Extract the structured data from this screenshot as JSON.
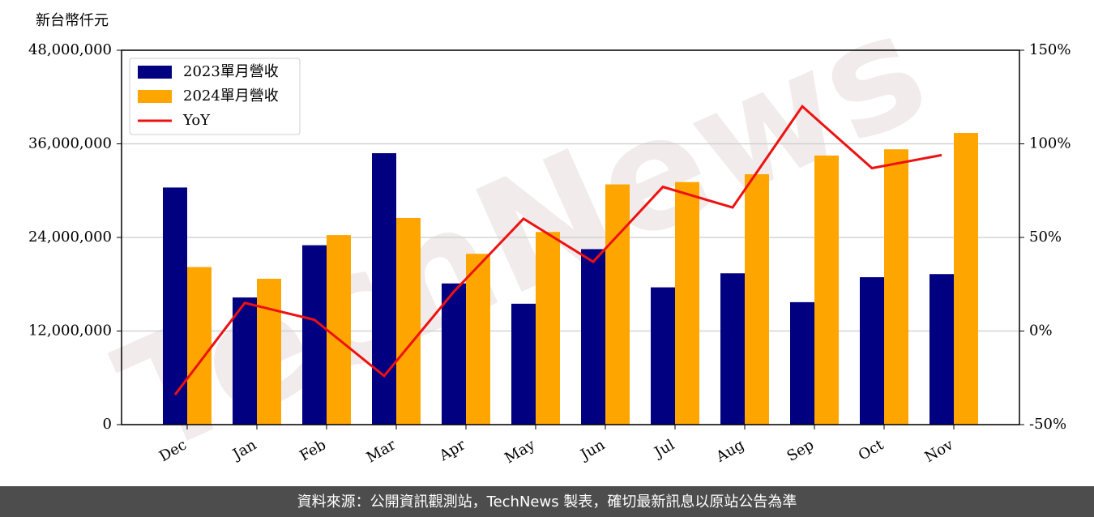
{
  "chart_data": {
    "type": "bar_line",
    "y_axis_label": "新台幣仟元",
    "categories": [
      "Dec",
      "Jan",
      "Feb",
      "Mar",
      "Apr",
      "May",
      "Jun",
      "Jul",
      "Aug",
      "Sep",
      "Oct",
      "Nov"
    ],
    "series": [
      {
        "name": "2023單月營收",
        "color": "#000080",
        "type": "bar",
        "values": [
          30400000,
          16300000,
          23000000,
          34800000,
          18100000,
          15500000,
          22500000,
          17600000,
          19400000,
          15700000,
          18900000,
          19300000
        ]
      },
      {
        "name": "2024單月營收",
        "color": "#ffa500",
        "type": "bar",
        "values": [
          20200000,
          18700000,
          24300000,
          26500000,
          21900000,
          24700000,
          30800000,
          31100000,
          32100000,
          34500000,
          35300000,
          37400000
        ]
      },
      {
        "name": "YoY",
        "color": "#ee1111",
        "type": "line",
        "axis": "y2",
        "values": [
          -34,
          15,
          6,
          -24,
          21,
          60,
          37,
          77,
          66,
          120,
          87,
          94
        ]
      }
    ],
    "ylim": [
      0,
      48000000
    ],
    "yticks": [
      0,
      {
        "value": 12000000,
        "label": "12,000,000"
      },
      {
        "value": 24000000,
        "label": "24,000,000"
      },
      {
        "value": 36000000,
        "label": "36,000,000"
      },
      {
        "value": 48000000,
        "label": "48,000,000"
      }
    ],
    "y2lim": [
      -50,
      150
    ],
    "y2ticks": [
      {
        "value": -50,
        "label": "-50%"
      },
      {
        "value": 0,
        "label": "0%"
      },
      {
        "value": 50,
        "label": "50%"
      },
      {
        "value": 100,
        "label": "100%"
      },
      {
        "value": 150,
        "label": "150%"
      }
    ],
    "grid": true,
    "legend": "upper left",
    "watermark": "TechNews",
    "footer": "資料來源：公開資訊觀測站，TechNews 製表，確切最新訊息以原站公告為準"
  }
}
